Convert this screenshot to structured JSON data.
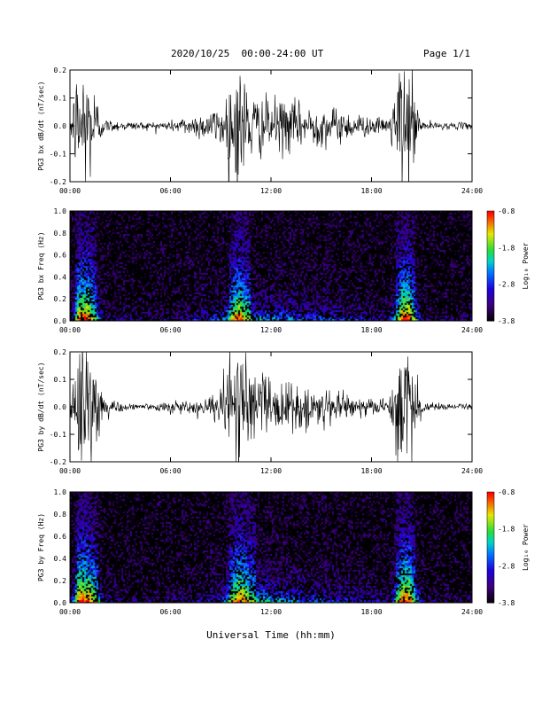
{
  "header": {
    "date_range": "2020/10/25  00:00-24:00 UT",
    "page": "Page 1/1"
  },
  "footer": {
    "xlabel": "Universal Time (hh:mm)"
  },
  "chart_data": [
    {
      "type": "line",
      "ylabel": "PG3 bx dB/dt (nT/sec)",
      "ylim": [
        -0.2,
        0.2
      ],
      "yticks": [
        "0.2",
        "0.1",
        "0.0",
        "-0.1",
        "-0.2"
      ],
      "xticks": [
        "00:00",
        "06:00",
        "12:00",
        "18:00",
        "24:00"
      ],
      "xlim_hours": [
        0,
        24
      ],
      "series": [
        {
          "x": [
            0,
            0.5,
            1.0,
            1.5,
            2.0,
            3.0,
            4.0,
            5.0,
            6.0,
            7.0,
            8.0,
            9.0,
            10.0,
            11.0,
            12.0,
            13.0,
            14.0,
            15.0,
            16.0,
            17.0,
            18.0,
            19.0,
            19.8,
            20.2,
            21.0,
            22.0,
            23.0,
            24.0
          ],
          "amplitude": [
            0.02,
            0.2,
            0.2,
            0.12,
            0.02,
            0.015,
            0.012,
            0.012,
            0.015,
            0.03,
            0.04,
            0.06,
            0.2,
            0.09,
            0.08,
            0.08,
            0.06,
            0.06,
            0.05,
            0.04,
            0.025,
            0.02,
            0.2,
            0.2,
            0.015,
            0.01,
            0.01,
            0.01
          ]
        }
      ]
    },
    {
      "type": "heatmap",
      "ylabel": "PG3 bx Freq (Hz)",
      "ylim": [
        0.0,
        1.0
      ],
      "yticks": [
        "1.0",
        "0.8",
        "0.6",
        "0.4",
        "0.2",
        "0.0"
      ],
      "xticks": [
        "00:00",
        "06:00",
        "12:00",
        "18:00",
        "24:00"
      ],
      "colorbar": {
        "label": "Log₁₀ Power",
        "ticks": [
          "-0.8",
          "-1.8",
          "-2.8",
          "-3.8"
        ],
        "range": [
          -3.8,
          -0.8
        ]
      }
    },
    {
      "type": "line",
      "ylabel": "PG3 by dB/dt (nT/sec)",
      "ylim": [
        -0.2,
        0.2
      ],
      "yticks": [
        "0.2",
        "0.1",
        "0.0",
        "-0.1",
        "-0.2"
      ],
      "xticks": [
        "00:00",
        "06:00",
        "12:00",
        "18:00",
        "24:00"
      ],
      "xlim_hours": [
        0,
        24
      ],
      "series": [
        {
          "x": [
            0,
            0.5,
            1.0,
            1.5,
            2.0,
            3.0,
            4.0,
            5.0,
            6.0,
            7.0,
            8.0,
            9.0,
            10.0,
            11.0,
            12.0,
            13.0,
            14.0,
            15.0,
            16.0,
            17.0,
            18.0,
            19.0,
            19.8,
            20.2,
            21.0,
            22.0,
            23.0,
            24.0
          ],
          "amplitude": [
            0.03,
            0.2,
            0.2,
            0.15,
            0.03,
            0.015,
            0.01,
            0.01,
            0.015,
            0.02,
            0.03,
            0.05,
            0.2,
            0.12,
            0.1,
            0.08,
            0.06,
            0.06,
            0.05,
            0.04,
            0.03,
            0.02,
            0.2,
            0.2,
            0.015,
            0.01,
            0.01,
            0.01
          ]
        }
      ]
    },
    {
      "type": "heatmap",
      "ylabel": "PG3 by Freq (Hz)",
      "ylim": [
        0.0,
        1.0
      ],
      "yticks": [
        "1.0",
        "0.8",
        "0.6",
        "0.4",
        "0.2",
        "0.0"
      ],
      "xticks": [
        "00:00",
        "06:00",
        "12:00",
        "18:00",
        "24:00"
      ],
      "colorbar": {
        "label": "Log₁₀ Power",
        "ticks": [
          "-0.8",
          "-1.8",
          "-2.8",
          "-3.8"
        ],
        "range": [
          -3.8,
          -0.8
        ]
      }
    }
  ]
}
